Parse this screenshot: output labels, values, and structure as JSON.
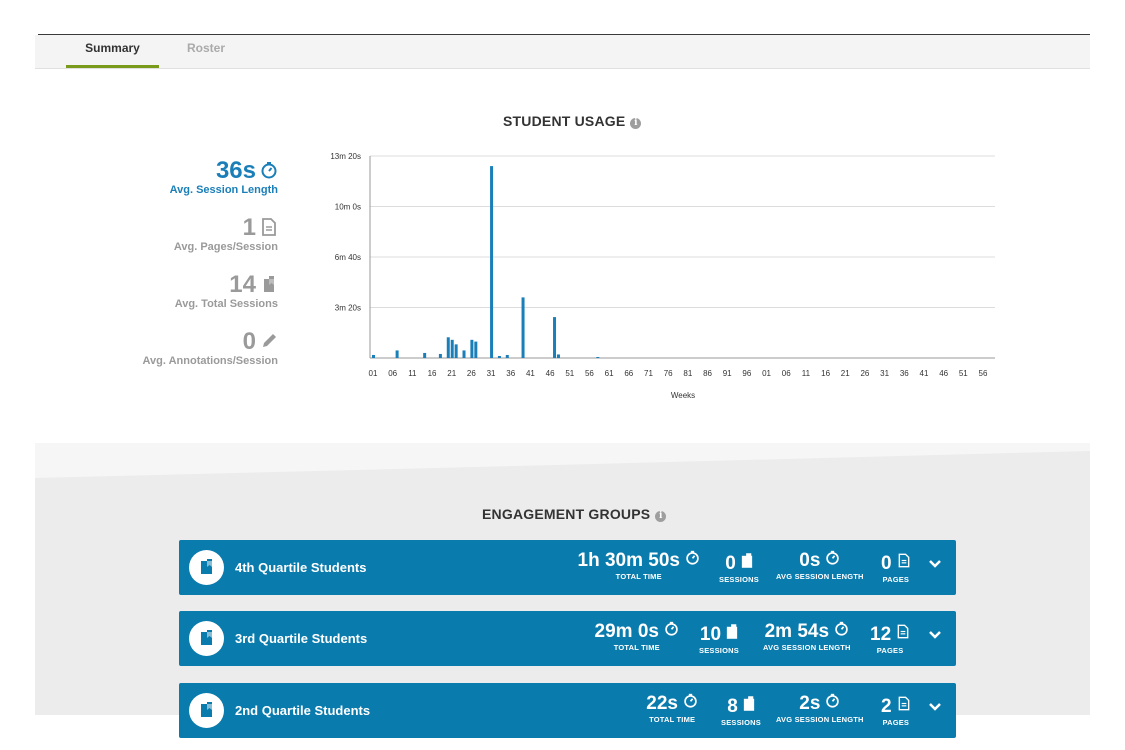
{
  "tabs": [
    {
      "label": "Summary",
      "active": true
    },
    {
      "label": "Roster",
      "active": false
    }
  ],
  "usage": {
    "title": "STUDENT USAGE",
    "stats": [
      {
        "value": "36s",
        "label": "Avg. Session Length",
        "icon": "stopwatch-icon",
        "color": "#1a7fb8"
      },
      {
        "value": "1",
        "label": "Avg. Pages/Session",
        "icon": "page-icon",
        "color": "#9a9a9a"
      },
      {
        "value": "14",
        "label": "Avg. Total Sessions",
        "icon": "book-icon",
        "color": "#9a9a9a"
      },
      {
        "value": "0",
        "label": "Avg. Annotations/Session",
        "icon": "pencil-icon",
        "color": "#9a9a9a"
      }
    ]
  },
  "chart_data": {
    "type": "bar",
    "xlabel": "Weeks",
    "ylabel": "",
    "ylim_seconds": [
      0,
      800
    ],
    "y_ticks": [
      {
        "label": "3m 20s",
        "value": 200
      },
      {
        "label": "6m 40s",
        "value": 400
      },
      {
        "label": "10m 0s",
        "value": 600
      },
      {
        "label": "13m 20s",
        "value": 800
      }
    ],
    "x_tick_labels": [
      "01",
      "06",
      "11",
      "16",
      "21",
      "26",
      "31",
      "36",
      "41",
      "46",
      "51",
      "56",
      "61",
      "66",
      "71",
      "76",
      "81",
      "86",
      "91",
      "96",
      "01",
      "06",
      "11",
      "16",
      "21",
      "26",
      "31",
      "36",
      "41",
      "46",
      "51",
      "56"
    ],
    "bar_color": "#1a7fb8",
    "series": [
      {
        "values": [
          {
            "week_index": 0,
            "seconds": 12
          },
          {
            "week_index": 6,
            "seconds": 30
          },
          {
            "week_index": 13,
            "seconds": 20
          },
          {
            "week_index": 17,
            "seconds": 16
          },
          {
            "week_index": 19,
            "seconds": 82
          },
          {
            "week_index": 20,
            "seconds": 72
          },
          {
            "week_index": 21,
            "seconds": 54
          },
          {
            "week_index": 23,
            "seconds": 30
          },
          {
            "week_index": 25,
            "seconds": 72
          },
          {
            "week_index": 26,
            "seconds": 65
          },
          {
            "week_index": 30,
            "seconds": 760
          },
          {
            "week_index": 32,
            "seconds": 8
          },
          {
            "week_index": 34,
            "seconds": 12
          },
          {
            "week_index": 38,
            "seconds": 240
          },
          {
            "week_index": 46,
            "seconds": 162
          },
          {
            "week_index": 47,
            "seconds": 14
          },
          {
            "week_index": 57,
            "seconds": 4
          }
        ]
      }
    ]
  },
  "engagement": {
    "title": "ENGAGEMENT GROUPS",
    "groups": [
      {
        "name": "4th Quartile Students",
        "total_time": "1h 30m 50s",
        "sessions": "0",
        "avg_session": "0s",
        "pages": "0"
      },
      {
        "name": "3rd Quartile Students",
        "total_time": "29m 0s",
        "sessions": "10",
        "avg_session": "2m 54s",
        "pages": "12"
      },
      {
        "name": "2nd Quartile Students",
        "total_time": "22s",
        "sessions": "8",
        "avg_session": "2s",
        "pages": "2"
      }
    ],
    "labels": {
      "total_time": "TOTAL TIME",
      "sessions": "SESSIONS",
      "avg_session": "AVG SESSION LENGTH",
      "pages": "PAGES"
    }
  }
}
